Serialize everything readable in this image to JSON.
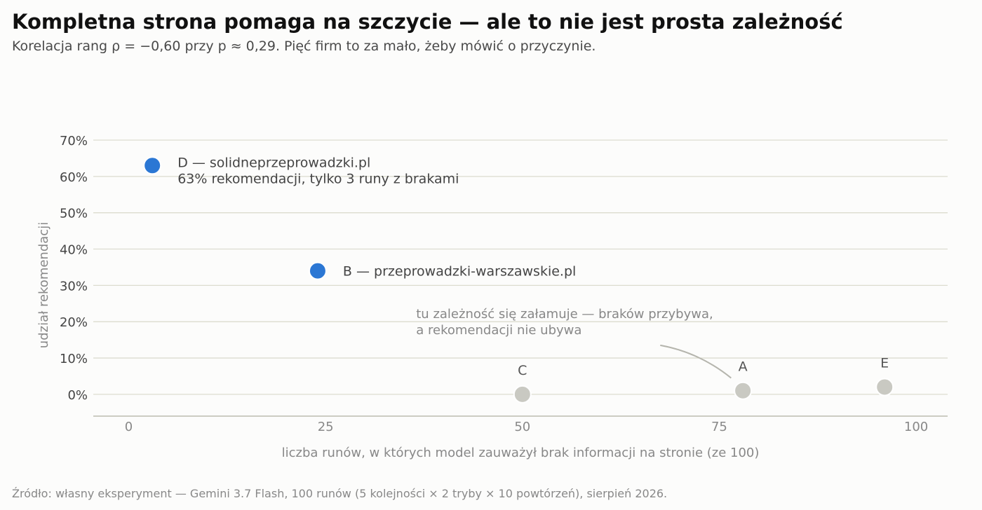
{
  "header": {
    "title": "Kompletna strona pomaga na szczycie — ale to nie jest prosta zależność",
    "subtitle": "Korelacja rang ρ = −0,60 przy p ≈ 0,29. Pięć firm to za mało, żeby mówić o przyczynie."
  },
  "footer": {
    "source": "Źródło: własny eksperyment — Gemini 3.7 Flash, 100 runów (5 kolejności × 2 tryby × 10 powtórzeń), sierpień 2026."
  },
  "chart_data": {
    "type": "scatter",
    "title": "Kompletna strona pomaga na szczycie — ale to nie jest prosta zależność",
    "subtitle": "Korelacja rang ρ = −0,60 przy p ≈ 0,29. Pięć firm to za mało, żeby mówić o przyczynie.",
    "xlabel": "liczba runów, w których model zauważył brak informacji na stronie (ze 100)",
    "ylabel": "udział rekomendacji",
    "xlim": [
      -4.5,
      104
    ],
    "ylim": [
      -6,
      70
    ],
    "x_ticks": [
      0,
      25,
      50,
      75,
      100
    ],
    "y_ticks": [
      0,
      10,
      20,
      30,
      40,
      50,
      60,
      70
    ],
    "y_tick_suffix": "%",
    "grid": "horizontal",
    "colors": {
      "highlight": "#2b77d4",
      "muted": "#c9c9c2",
      "grid": "#dcdccf",
      "axis": "#bbbbb0"
    },
    "points": [
      {
        "id": "D",
        "x": 3,
        "y": 63,
        "highlight": true,
        "label_lines": [
          "D — solidneprzeprowadzki.pl",
          "63% rekomendacji, tylko 3 runy z brakami"
        ],
        "label_pos": "right"
      },
      {
        "id": "B",
        "x": 24,
        "y": 34,
        "highlight": true,
        "label_lines": [
          "B — przeprowadzki-warszawskie.pl"
        ],
        "label_pos": "right"
      },
      {
        "id": "C",
        "x": 50,
        "y": 0,
        "highlight": false,
        "label_lines": [
          "C"
        ],
        "label_pos": "above"
      },
      {
        "id": "A",
        "x": 78,
        "y": 1,
        "highlight": false,
        "label_lines": [
          "A"
        ],
        "label_pos": "above"
      },
      {
        "id": "E",
        "x": 96,
        "y": 2,
        "highlight": false,
        "label_lines": [
          "E"
        ],
        "label_pos": "above"
      }
    ],
    "annotation": {
      "lines": [
        "tu zależność się załamuje — braków przybywa,",
        "a rekomendacji nie ubywa"
      ],
      "anchor": {
        "x": 36.5,
        "y": 21
      },
      "arrow_from": {
        "x": 67.5,
        "y": 13.5
      },
      "arrow_to": {
        "x": 76.5,
        "y": 4.5
      }
    }
  }
}
